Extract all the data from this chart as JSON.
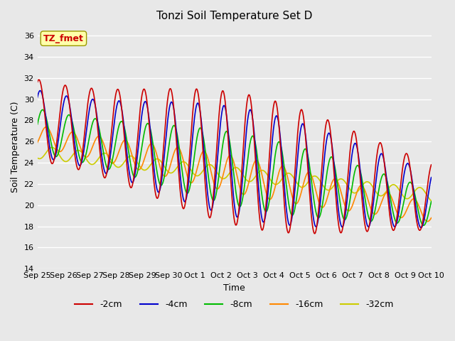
{
  "title": "Tonzi Soil Temperature Set D",
  "xlabel": "Time",
  "ylabel": "Soil Temperature (C)",
  "ylim": [
    14,
    37
  ],
  "yticks": [
    14,
    16,
    18,
    20,
    22,
    24,
    26,
    28,
    30,
    32,
    34,
    36
  ],
  "xtick_labels": [
    "Sep 25",
    "Sep 26",
    "Sep 27",
    "Sep 28",
    "Sep 29",
    "Sep 30",
    "Oct 1",
    "Oct 2",
    "Oct 3",
    "Oct 4",
    "Oct 5",
    "Oct 6",
    "Oct 7",
    "Oct 8",
    "Oct 9",
    "Oct 10"
  ],
  "colors": {
    "-2cm": "#cc0000",
    "-4cm": "#0000cc",
    "-8cm": "#00bb00",
    "-16cm": "#ff8800",
    "-32cm": "#cccc00"
  },
  "legend_labels": [
    "-2cm",
    "-4cm",
    "-8cm",
    "-16cm",
    "-32cm"
  ],
  "annotation_text": "TZ_fmet",
  "annotation_box_facecolor": "#ffffaa",
  "annotation_text_color": "#cc0000",
  "annotation_edge_color": "#999900",
  "fig_facecolor": "#e8e8e8",
  "ax_facecolor": "#e8e8e8",
  "grid_color": "#ffffff",
  "linewidth": 1.2,
  "n_points": 1440
}
